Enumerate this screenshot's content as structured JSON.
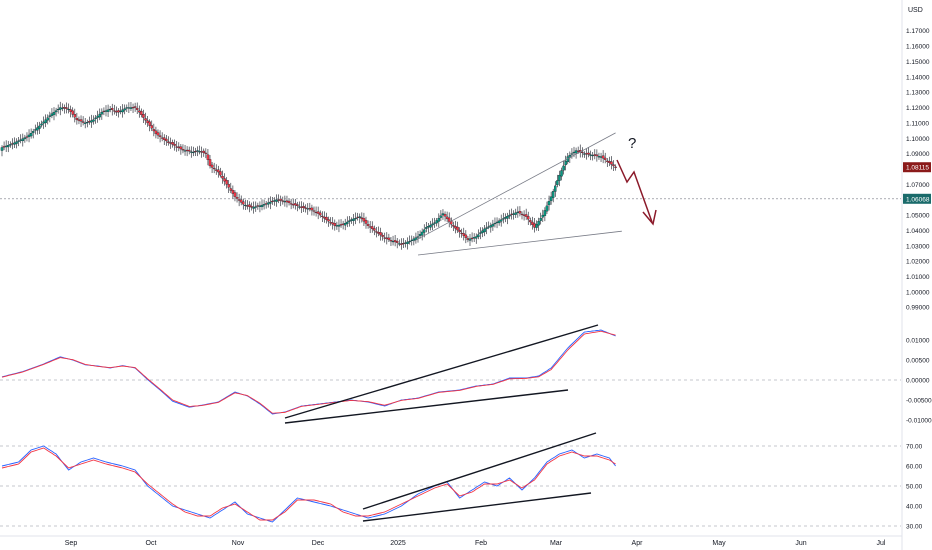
{
  "chart_data": [
    {
      "type": "candlestick",
      "panel": "price",
      "currency": "USD",
      "y_ticks": [
        1.17,
        1.16,
        1.15,
        1.14,
        1.13,
        1.12,
        1.11,
        1.1,
        1.09,
        1.07,
        1.05,
        1.04,
        1.03,
        1.02,
        1.01,
        1.0,
        0.99
      ],
      "y_tick_labels": [
        "1.17000",
        "1.16000",
        "1.15000",
        "1.14000",
        "1.13000",
        "1.12000",
        "1.11000",
        "1.10000",
        "1.09000",
        "1.07000",
        "1.05000",
        "1.04000",
        "1.03000",
        "1.02000",
        "1.01000",
        "1.00000",
        "0.99000"
      ],
      "ylim": [
        0.983,
        1.19
      ],
      "dotted_level": 1.0606,
      "last_price_label": "1.08115",
      "level_label": "1.06068",
      "question_mark": "?",
      "close_path": [
        [
          0,
          1.094
        ],
        [
          6,
          1.097
        ],
        [
          12,
          1.101
        ],
        [
          18,
          1.108
        ],
        [
          24,
          1.116
        ],
        [
          28,
          1.12
        ],
        [
          32,
          1.119
        ],
        [
          36,
          1.112
        ],
        [
          40,
          1.11
        ],
        [
          44,
          1.112
        ],
        [
          48,
          1.117
        ],
        [
          52,
          1.119
        ],
        [
          56,
          1.117
        ],
        [
          60,
          1.12
        ],
        [
          64,
          1.12
        ],
        [
          66,
          1.117
        ],
        [
          70,
          1.11
        ],
        [
          74,
          1.103
        ],
        [
          78,
          1.099
        ],
        [
          82,
          1.096
        ],
        [
          86,
          1.093
        ],
        [
          88,
          1.092
        ],
        [
          92,
          1.091
        ],
        [
          94,
          1.092
        ],
        [
          98,
          1.09
        ],
        [
          100,
          1.082
        ],
        [
          104,
          1.078
        ],
        [
          108,
          1.07
        ],
        [
          112,
          1.062
        ],
        [
          116,
          1.057
        ],
        [
          120,
          1.055
        ],
        [
          124,
          1.056
        ],
        [
          128,
          1.058
        ],
        [
          132,
          1.06
        ],
        [
          136,
          1.059
        ],
        [
          140,
          1.057
        ],
        [
          144,
          1.055
        ],
        [
          148,
          1.054
        ],
        [
          152,
          1.051
        ],
        [
          156,
          1.047
        ],
        [
          160,
          1.043
        ],
        [
          164,
          1.044
        ],
        [
          168,
          1.047
        ],
        [
          172,
          1.049
        ],
        [
          176,
          1.043
        ],
        [
          180,
          1.039
        ],
        [
          184,
          1.035
        ],
        [
          188,
          1.033
        ],
        [
          192,
          1.031
        ],
        [
          196,
          1.033
        ],
        [
          200,
          1.036
        ],
        [
          204,
          1.042
        ],
        [
          208,
          1.045
        ],
        [
          212,
          1.051
        ],
        [
          216,
          1.044
        ],
        [
          220,
          1.039
        ],
        [
          224,
          1.034
        ],
        [
          228,
          1.036
        ],
        [
          232,
          1.041
        ],
        [
          236,
          1.044
        ],
        [
          240,
          1.047
        ],
        [
          244,
          1.05
        ],
        [
          248,
          1.052
        ],
        [
          252,
          1.049
        ],
        [
          256,
          1.042
        ],
        [
          260,
          1.05
        ],
        [
          264,
          1.062
        ],
        [
          268,
          1.076
        ],
        [
          272,
          1.088
        ],
        [
          276,
          1.092
        ],
        [
          280,
          1.09
        ],
        [
          284,
          1.089
        ],
        [
          288,
          1.088
        ],
        [
          292,
          1.084
        ],
        [
          295,
          1.081
        ]
      ]
    },
    {
      "type": "line",
      "panel": "oscillator",
      "y_ticks": [
        0.01,
        0.005,
        0.0,
        -0.005,
        -0.01
      ],
      "y_tick_labels": [
        "0.01000",
        "0.00500",
        "0.00000",
        "-0.00500",
        "-0.01000"
      ],
      "ylim": [
        -0.0135,
        0.0145
      ],
      "dashed_level": 0.0,
      "series": [
        {
          "values": [
            [
              0,
              0.0008
            ],
            [
              10,
              0.0021
            ],
            [
              20,
              0.004
            ],
            [
              28,
              0.0058
            ],
            [
              34,
              0.005
            ],
            [
              40,
              0.0038
            ],
            [
              46,
              0.0035
            ],
            [
              52,
              0.003
            ],
            [
              58,
              0.0036
            ],
            [
              64,
              0.003
            ],
            [
              70,
              0.0001
            ],
            [
              76,
              -0.0025
            ],
            [
              82,
              -0.0053
            ],
            [
              90,
              -0.0068
            ],
            [
              96,
              -0.0063
            ],
            [
              104,
              -0.0055
            ],
            [
              112,
              -0.003
            ],
            [
              118,
              -0.004
            ],
            [
              124,
              -0.006
            ],
            [
              130,
              -0.0085
            ],
            [
              136,
              -0.008
            ],
            [
              144,
              -0.0065
            ],
            [
              152,
              -0.006
            ],
            [
              160,
              -0.0055
            ],
            [
              168,
              -0.005
            ],
            [
              176,
              -0.0055
            ],
            [
              184,
              -0.0065
            ],
            [
              192,
              -0.005
            ],
            [
              200,
              -0.0045
            ],
            [
              210,
              -0.003
            ],
            [
              220,
              -0.0025
            ],
            [
              228,
              -0.0015
            ],
            [
              236,
              -0.001
            ],
            [
              244,
              0.0005
            ],
            [
              252,
              0.0005
            ],
            [
              258,
              0.001
            ],
            [
              264,
              0.003
            ],
            [
              272,
              0.008
            ],
            [
              280,
              0.012
            ],
            [
              288,
              0.0125
            ],
            [
              295,
              0.011
            ]
          ]
        },
        {
          "values": [
            [
              0,
              0.0007
            ],
            [
              10,
              0.002
            ],
            [
              20,
              0.0039
            ],
            [
              28,
              0.0056
            ],
            [
              34,
              0.0051
            ],
            [
              40,
              0.0039
            ],
            [
              46,
              0.0034
            ],
            [
              52,
              0.0031
            ],
            [
              58,
              0.0035
            ],
            [
              64,
              0.0031
            ],
            [
              70,
              0.0003
            ],
            [
              76,
              -0.0023
            ],
            [
              82,
              -0.005
            ],
            [
              90,
              -0.0066
            ],
            [
              96,
              -0.0064
            ],
            [
              104,
              -0.0056
            ],
            [
              112,
              -0.0032
            ],
            [
              118,
              -0.0039
            ],
            [
              124,
              -0.0058
            ],
            [
              130,
              -0.0083
            ],
            [
              136,
              -0.0081
            ],
            [
              144,
              -0.0066
            ],
            [
              152,
              -0.0061
            ],
            [
              160,
              -0.0056
            ],
            [
              168,
              -0.0051
            ],
            [
              176,
              -0.0054
            ],
            [
              184,
              -0.0063
            ],
            [
              192,
              -0.0051
            ],
            [
              200,
              -0.0046
            ],
            [
              210,
              -0.0031
            ],
            [
              220,
              -0.0026
            ],
            [
              228,
              -0.0016
            ],
            [
              236,
              -0.0011
            ],
            [
              244,
              0.0003
            ],
            [
              252,
              0.0004
            ],
            [
              258,
              0.0008
            ],
            [
              264,
              0.0026
            ],
            [
              272,
              0.0075
            ],
            [
              280,
              0.0115
            ],
            [
              288,
              0.0122
            ],
            [
              295,
              0.0112
            ]
          ]
        }
      ]
    },
    {
      "type": "line",
      "panel": "rsi",
      "y_ticks": [
        70,
        60,
        50,
        40,
        30
      ],
      "y_tick_labels": [
        "70.00",
        "60.00",
        "50.00",
        "40.00",
        "30.00"
      ],
      "ylim": [
        27.5,
        74.5
      ],
      "dashed_levels": [
        70,
        50,
        30
      ],
      "series": [
        {
          "values": [
            [
              0,
              60
            ],
            [
              8,
              62
            ],
            [
              14,
              68
            ],
            [
              20,
              70
            ],
            [
              26,
              66
            ],
            [
              32,
              58
            ],
            [
              38,
              62
            ],
            [
              44,
              64
            ],
            [
              50,
              62
            ],
            [
              58,
              60
            ],
            [
              64,
              58
            ],
            [
              70,
              50
            ],
            [
              76,
              45
            ],
            [
              82,
              40
            ],
            [
              88,
              38
            ],
            [
              94,
              36
            ],
            [
              100,
              34
            ],
            [
              106,
              38
            ],
            [
              112,
              42
            ],
            [
              118,
              36
            ],
            [
              124,
              34
            ],
            [
              130,
              32
            ],
            [
              136,
              38
            ],
            [
              142,
              44
            ],
            [
              150,
              42
            ],
            [
              158,
              40
            ],
            [
              164,
              38
            ],
            [
              170,
              36
            ],
            [
              176,
              34
            ],
            [
              184,
              36
            ],
            [
              192,
              40
            ],
            [
              200,
              46
            ],
            [
              208,
              50
            ],
            [
              214,
              52
            ],
            [
              220,
              44
            ],
            [
              226,
              48
            ],
            [
              232,
              52
            ],
            [
              238,
              50
            ],
            [
              244,
              54
            ],
            [
              250,
              48
            ],
            [
              256,
              54
            ],
            [
              262,
              62
            ],
            [
              268,
              66
            ],
            [
              274,
              68
            ],
            [
              280,
              64
            ],
            [
              286,
              66
            ],
            [
              292,
              64
            ],
            [
              295,
              60
            ]
          ]
        },
        {
          "values": [
            [
              0,
              59
            ],
            [
              8,
              61
            ],
            [
              14,
              67
            ],
            [
              20,
              69
            ],
            [
              26,
              65
            ],
            [
              32,
              59
            ],
            [
              38,
              61
            ],
            [
              44,
              63
            ],
            [
              50,
              61
            ],
            [
              58,
              59
            ],
            [
              64,
              57
            ],
            [
              70,
              51
            ],
            [
              76,
              46
            ],
            [
              82,
              41
            ],
            [
              88,
              37
            ],
            [
              94,
              35
            ],
            [
              100,
              35
            ],
            [
              106,
              39
            ],
            [
              112,
              41
            ],
            [
              118,
              37
            ],
            [
              124,
              33
            ],
            [
              130,
              33
            ],
            [
              136,
              37
            ],
            [
              142,
              43
            ],
            [
              150,
              43
            ],
            [
              158,
              41
            ],
            [
              164,
              37
            ],
            [
              170,
              35
            ],
            [
              176,
              35
            ],
            [
              184,
              37
            ],
            [
              192,
              41
            ],
            [
              200,
              45
            ],
            [
              208,
              49
            ],
            [
              214,
              51
            ],
            [
              220,
              45
            ],
            [
              226,
              47
            ],
            [
              232,
              51
            ],
            [
              238,
              51
            ],
            [
              244,
              53
            ],
            [
              250,
              49
            ],
            [
              256,
              53
            ],
            [
              262,
              61
            ],
            [
              268,
              65
            ],
            [
              274,
              67
            ],
            [
              280,
              65
            ],
            [
              286,
              65
            ],
            [
              292,
              63
            ],
            [
              295,
              61
            ]
          ]
        }
      ]
    }
  ],
  "x_axis": {
    "labels": [
      "Sep",
      "Oct",
      "Nov",
      "Dec",
      "2025",
      "Feb",
      "Mar",
      "Apr",
      "May",
      "Jun",
      "Jul"
    ]
  },
  "colors": {
    "up": "#089981",
    "down": "#f23645",
    "last_price_bg": "#8b1a1a",
    "level_bg": "#1a6b6b",
    "forecast_arrow": "#8b1a2a",
    "series_blue": "#2962ff",
    "series_red": "#f23645"
  }
}
